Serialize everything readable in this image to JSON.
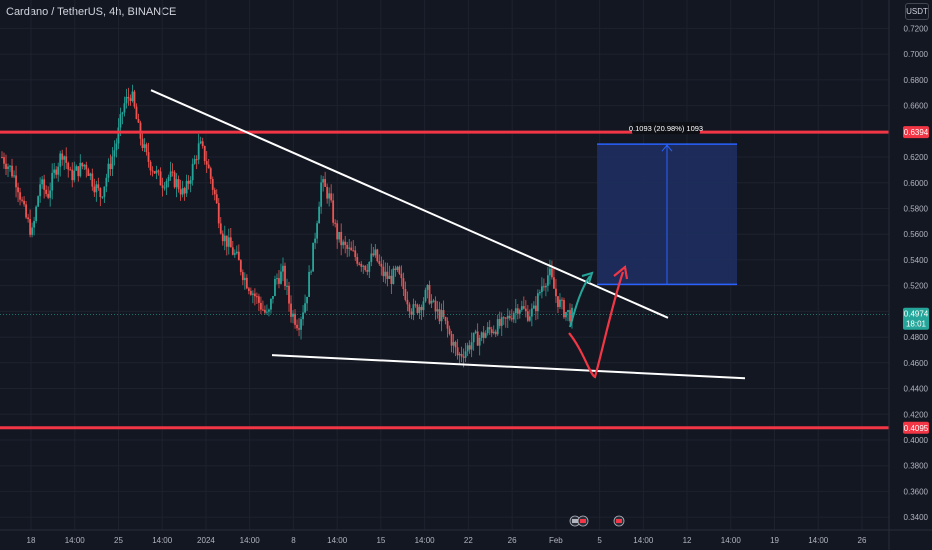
{
  "header": {
    "title": "Cardano / TetherUS, 4h, BINANCE",
    "currency": "USDT"
  },
  "colors": {
    "background": "#131722",
    "up": "#26a69a",
    "down": "#ef5350",
    "level_line": "#f23645",
    "trend_line": "#ffffff",
    "projection_box": "#1e2f63",
    "projection_border": "#2962ff",
    "arrow_green": "#26a69a",
    "arrow_red": "#f23645"
  },
  "chart_data": {
    "type": "candlestick",
    "ylim": [
      0.33,
      0.725
    ],
    "y_ticks": [
      "0.3400",
      "0.3600",
      "0.3800",
      "0.4000",
      "0.4200",
      "0.4400",
      "0.4600",
      "0.4800",
      "0.5000",
      "0.5200",
      "0.5400",
      "0.5600",
      "0.5800",
      "0.6000",
      "0.6200",
      "0.6400",
      "0.6600",
      "0.6800",
      "0.7000",
      "0.7200"
    ],
    "x_ticks": [
      "18",
      "14:00",
      "25",
      "14:00",
      "2024",
      "14:00",
      "8",
      "14:00",
      "15",
      "14:00",
      "22",
      "26",
      "Feb",
      "5",
      "14:00",
      "12",
      "14:00",
      "19",
      "14:00",
      "26"
    ],
    "levels": [
      {
        "label": "0.6394",
        "value": 0.6394
      },
      {
        "label": "0.4095",
        "value": 0.4095
      }
    ],
    "last_price": {
      "label": "0.4974",
      "countdown": "18:01",
      "value": 0.4974
    },
    "measurement": {
      "label": "0.1093 (20.98%) 1093",
      "from": 0.521,
      "to": 0.63
    },
    "trendlines": [
      {
        "name": "upper",
        "from": [
          0,
          0.672
        ],
        "to": [
          1,
          0.495
        ]
      },
      {
        "name": "lower",
        "from": [
          0,
          0.466
        ],
        "to": [
          1,
          0.448
        ]
      }
    ],
    "price_path": [
      0.62,
      0.612,
      0.6,
      0.575,
      0.56,
      0.6,
      0.59,
      0.61,
      0.625,
      0.605,
      0.61,
      0.615,
      0.6,
      0.59,
      0.61,
      0.63,
      0.66,
      0.67,
      0.64,
      0.62,
      0.61,
      0.6,
      0.605,
      0.6,
      0.59,
      0.61,
      0.63,
      0.615,
      0.59,
      0.56,
      0.55,
      0.54,
      0.525,
      0.515,
      0.505,
      0.495,
      0.525,
      0.53,
      0.5,
      0.49,
      0.51,
      0.55,
      0.6,
      0.59,
      0.56,
      0.55,
      0.545,
      0.54,
      0.535,
      0.545,
      0.53,
      0.525,
      0.53,
      0.515,
      0.5,
      0.505,
      0.515,
      0.5,
      0.495,
      0.48,
      0.465,
      0.47,
      0.478,
      0.48,
      0.485,
      0.488,
      0.49,
      0.498,
      0.505,
      0.498,
      0.5,
      0.52,
      0.53,
      0.51,
      0.5,
      0.497
    ]
  }
}
